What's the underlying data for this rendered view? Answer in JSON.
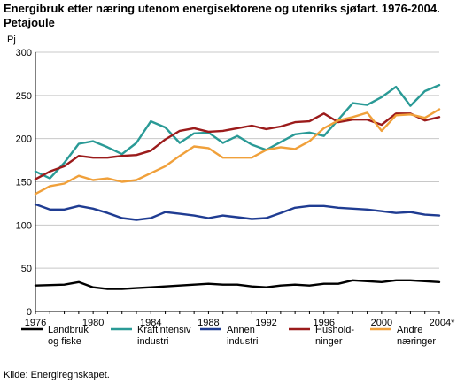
{
  "header": {
    "title_line1": "Energibruk etter næring utenom energisektorene og utenriks sjøfart. 1976-2004.",
    "title_line2": "Petajoule"
  },
  "source": "Kilde: Energiregnskapet.",
  "chart_data": {
    "type": "line",
    "title": "Energibruk etter næring utenom energisektorene og utenriks sjøfart. 1976-2004. Petajoule",
    "ylabel": "Pj",
    "xlabel": "",
    "ylim": [
      0,
      300
    ],
    "xlim": [
      1976,
      2004
    ],
    "y_ticks": [
      0,
      50,
      100,
      150,
      200,
      250,
      300
    ],
    "x_ticks": [
      "1976",
      "1980",
      "1984",
      "1988",
      "1992",
      "1996",
      "2000",
      "2004*"
    ],
    "x_tick_values": [
      1976,
      1980,
      1984,
      1988,
      1992,
      1996,
      2000,
      2004
    ],
    "grid": "horizontal",
    "legend_position": "bottom",
    "x": [
      1976,
      1977,
      1978,
      1979,
      1980,
      1981,
      1982,
      1983,
      1984,
      1985,
      1986,
      1987,
      1988,
      1989,
      1990,
      1991,
      1992,
      1993,
      1994,
      1995,
      1996,
      1997,
      1998,
      1999,
      2000,
      2001,
      2002,
      2003,
      2004
    ],
    "series": [
      {
        "name": "Landbruk og fiske",
        "legend_lines": [
          "Landbruk",
          "og fiske"
        ],
        "color": "#000000",
        "values": [
          30,
          30.5,
          31,
          34,
          28,
          26,
          26,
          27,
          28,
          29,
          30,
          31,
          32,
          31,
          31,
          29,
          28,
          30,
          31,
          30,
          32,
          32,
          36,
          35,
          34,
          36,
          36,
          35,
          34
        ]
      },
      {
        "name": "Kraftintensiv industri",
        "legend_lines": [
          "Kraftintensiv",
          "industri"
        ],
        "color": "#2a9a96",
        "values": [
          162,
          154,
          172,
          194,
          197,
          190,
          182,
          195,
          220,
          213,
          195,
          206,
          207,
          195,
          203,
          193,
          187,
          196,
          205,
          207,
          203,
          222,
          241,
          239,
          248,
          260,
          238,
          255,
          262
        ]
      },
      {
        "name": "Annen industri",
        "legend_lines": [
          "Annen",
          "industri"
        ],
        "color": "#1f3c92",
        "values": [
          124,
          118,
          118,
          122,
          119,
          114,
          108,
          106,
          108,
          115,
          113,
          111,
          108,
          111,
          109,
          107,
          108,
          114,
          120,
          122,
          122,
          120,
          119,
          118,
          116,
          114,
          115,
          112,
          111
        ]
      },
      {
        "name": "Husholdninger",
        "legend_lines": [
          "Hushold-",
          "ninger"
        ],
        "color": "#9b1b1b",
        "values": [
          153,
          162,
          168,
          180,
          178,
          178,
          180,
          181,
          186,
          199,
          209,
          212,
          208,
          209,
          212,
          215,
          211,
          214,
          219,
          220,
          229,
          219,
          222,
          222,
          216,
          229,
          229,
          221,
          225
        ]
      },
      {
        "name": "Andre næringer",
        "legend_lines": [
          "Andre",
          "næringer"
        ],
        "color": "#f0a03a",
        "values": [
          136,
          145,
          148,
          157,
          152,
          154,
          150,
          152,
          160,
          168,
          180,
          191,
          189,
          178,
          178,
          178,
          187,
          190,
          188,
          197,
          212,
          221,
          225,
          230,
          209,
          227,
          228,
          224,
          234
        ]
      }
    ]
  }
}
